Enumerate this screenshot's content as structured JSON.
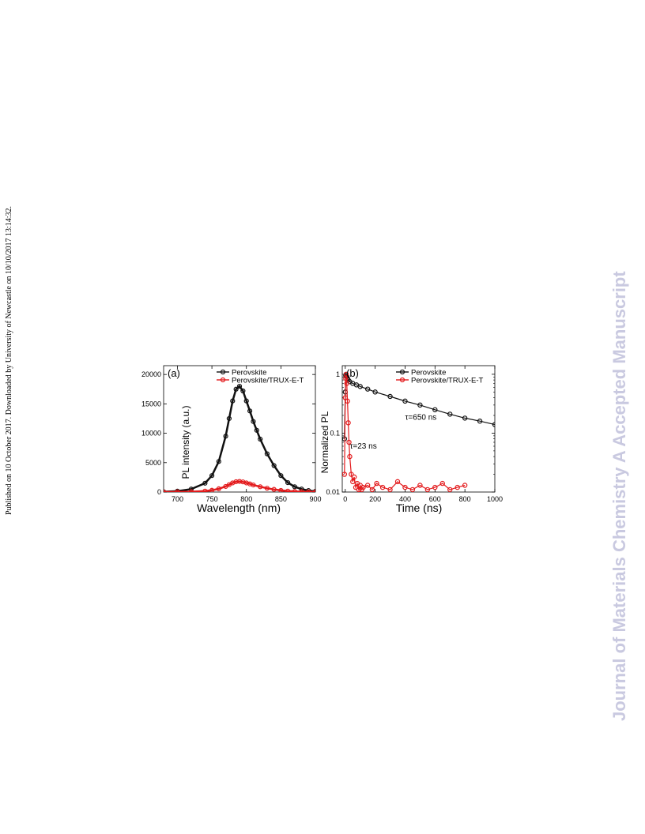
{
  "side_note": "Published on 10 October 2017. Downloaded by University of Newcastle on 10/10/2017 13:14:32.",
  "watermark": "Journal of Materials Chemistry A Accepted Manuscript",
  "colors": {
    "perovskite": "#111111",
    "trux": "#e31a1c",
    "watermark": "#c9c9e0"
  },
  "chart_data": [
    {
      "type": "line",
      "panel_label": "(a)",
      "xlabel": "Wavelength (nm)",
      "ylabel": "PL intensity (a.u.)",
      "xlim": [
        680,
        900
      ],
      "ylim": [
        0,
        21500
      ],
      "xticks": [
        700,
        750,
        800,
        850,
        900
      ],
      "yticks": [
        0,
        5000,
        10000,
        15000,
        20000
      ],
      "legend_position": "top-right",
      "series": [
        {
          "name": "Perovskite",
          "color": "#111111",
          "x": [
            680,
            700,
            720,
            740,
            750,
            760,
            770,
            775,
            780,
            785,
            790,
            795,
            800,
            805,
            810,
            815,
            820,
            830,
            840,
            850,
            860,
            870,
            880,
            890,
            900
          ],
          "y": [
            50,
            150,
            500,
            1500,
            2800,
            5200,
            9500,
            12500,
            15500,
            17500,
            18000,
            17200,
            15500,
            13800,
            12000,
            10500,
            9000,
            6500,
            4500,
            2800,
            1600,
            900,
            500,
            250,
            120
          ]
        },
        {
          "name": "Perovskite/TRUX-E-T",
          "color": "#e31a1c",
          "x": [
            680,
            700,
            720,
            740,
            750,
            760,
            770,
            775,
            780,
            785,
            790,
            795,
            800,
            805,
            810,
            820,
            830,
            840,
            850,
            860,
            870,
            880,
            890,
            900
          ],
          "y": [
            10,
            20,
            50,
            160,
            300,
            550,
            950,
            1250,
            1550,
            1750,
            1800,
            1720,
            1550,
            1380,
            1200,
            900,
            650,
            450,
            280,
            160,
            90,
            50,
            25,
            12
          ]
        }
      ]
    },
    {
      "type": "scatter",
      "panel_label": "(b)",
      "xlabel": "Time (ns)",
      "ylabel": "Normalized PL",
      "xlim": [
        -20,
        1000
      ],
      "ylim": [
        0.01,
        1.4
      ],
      "yscale": "log",
      "xticks": [
        0,
        200,
        400,
        600,
        800,
        1000
      ],
      "yticks": [
        0.01,
        0.1,
        1
      ],
      "legend_position": "top-right",
      "annotations": [
        {
          "text": "τ=650 ns",
          "x": 400,
          "y": 0.17
        },
        {
          "text": "τ=23 ns",
          "x": 30,
          "y": 0.055
        }
      ],
      "series": [
        {
          "name": "Perovskite",
          "color": "#111111",
          "x": [
            -5,
            0,
            3,
            6,
            10,
            15,
            20,
            30,
            50,
            75,
            100,
            150,
            200,
            300,
            400,
            500,
            600,
            700,
            800,
            900,
            1000
          ],
          "y": [
            0.08,
            0.5,
            0.95,
            1.0,
            0.92,
            0.85,
            0.8,
            0.75,
            0.7,
            0.66,
            0.62,
            0.56,
            0.5,
            0.42,
            0.35,
            0.3,
            0.25,
            0.21,
            0.18,
            0.16,
            0.14
          ]
        },
        {
          "name": "Perovskite/TRUX-E-T",
          "color": "#e31a1c",
          "x": [
            -5,
            0,
            3,
            6,
            10,
            15,
            20,
            25,
            30,
            40,
            50,
            60,
            70,
            80,
            90,
            100,
            110,
            120,
            150,
            180,
            210,
            250,
            300,
            350,
            400,
            450,
            500,
            550,
            600,
            650,
            700,
            750,
            800
          ],
          "y": [
            0.02,
            0.4,
            0.85,
            1.0,
            0.7,
            0.35,
            0.15,
            0.07,
            0.04,
            0.02,
            0.015,
            0.018,
            0.012,
            0.014,
            0.011,
            0.013,
            0.011,
            0.012,
            0.013,
            0.011,
            0.014,
            0.012,
            0.011,
            0.015,
            0.012,
            0.011,
            0.013,
            0.011,
            0.012,
            0.014,
            0.011,
            0.012,
            0.013
          ]
        }
      ]
    }
  ]
}
